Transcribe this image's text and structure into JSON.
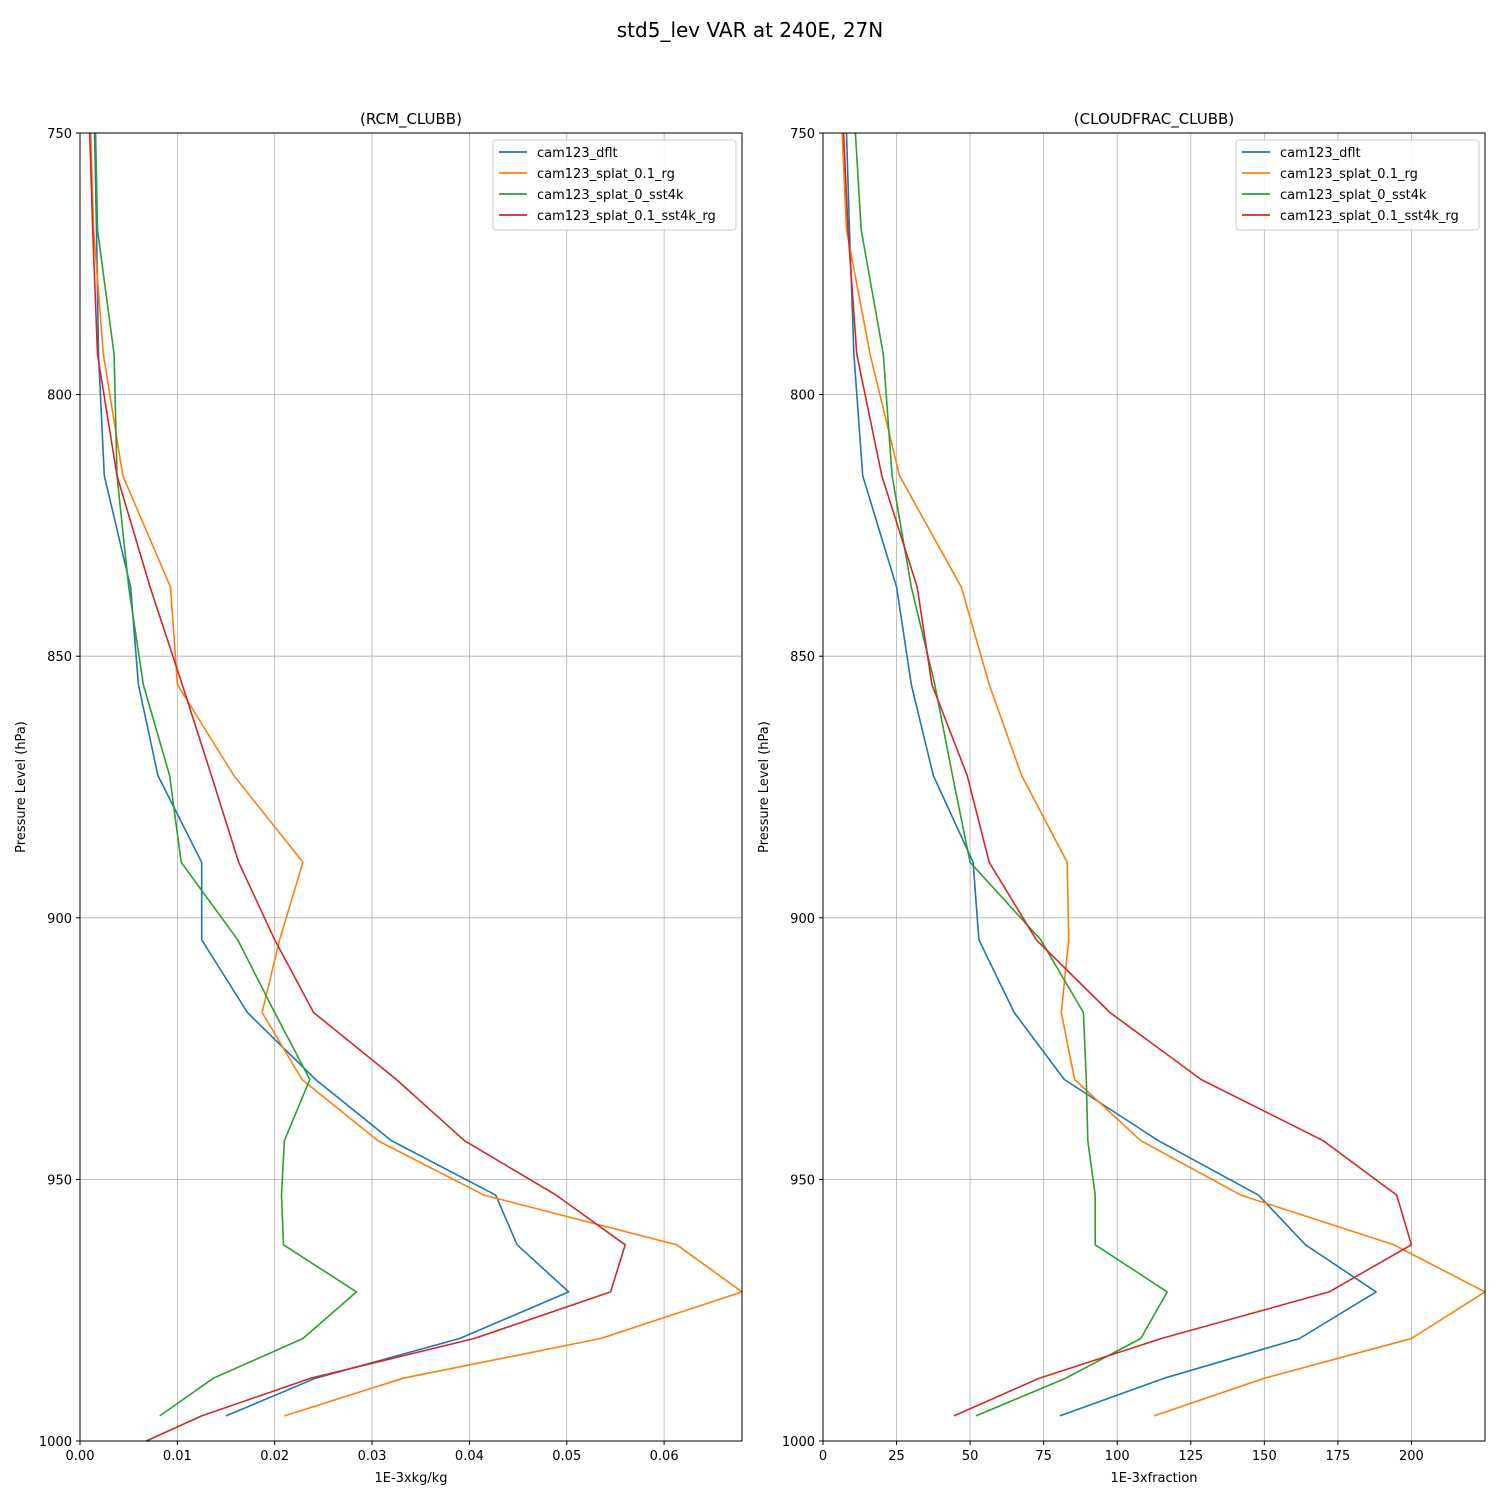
{
  "figure": {
    "suptitle": "std5_lev VAR at 240E, 27N"
  },
  "chart_data": [
    {
      "type": "line",
      "title": "(RCM_CLUBB)",
      "xlabel": "1E-3xkg/kg",
      "ylabel": "Pressure Level (hPa)",
      "xlim": [
        0.0,
        0.068
      ],
      "ylim": [
        1000,
        750
      ],
      "y_inverted": true,
      "xticks": [
        0.0,
        0.01,
        0.02,
        0.03,
        0.04,
        0.05,
        0.06
      ],
      "xtick_labels": [
        "0.00",
        "0.01",
        "0.02",
        "0.03",
        "0.04",
        "0.05",
        "0.06"
      ],
      "yticks": [
        750,
        800,
        850,
        900,
        950,
        1000
      ],
      "ytick_labels": [
        "750",
        "800",
        "850",
        "900",
        "950",
        "1000"
      ],
      "grid": true,
      "legend_position": "upper right",
      "series": [
        {
          "name": "cam123_dflt",
          "color": "#1f77b4",
          "x": [
            0.0015,
            0.0017,
            0.0019,
            0.0025,
            0.0052,
            0.006,
            0.008,
            0.0125,
            0.0125,
            0.0172,
            0.0242,
            0.032,
            0.0427,
            0.0449,
            0.0502,
            0.039,
            0.0242,
            0.015
          ],
          "y": [
            750,
            768.5,
            792.3,
            815.5,
            836.8,
            855.4,
            872.8,
            889.4,
            904.2,
            918.1,
            930.9,
            942.6,
            953.0,
            962.5,
            971.5,
            980.4,
            988.0,
            995.2
          ]
        },
        {
          "name": "cam123_splat_0.1_rg",
          "color": "#ff7f0e",
          "x": [
            0.0011,
            0.0014,
            0.0024,
            0.0044,
            0.0093,
            0.01,
            0.0158,
            0.0229,
            0.0205,
            0.0187,
            0.0228,
            0.0306,
            0.0415,
            0.0613,
            0.068,
            0.0535,
            0.0332,
            0.021
          ],
          "y": [
            750,
            768.5,
            792.3,
            815.5,
            836.8,
            855.4,
            872.8,
            889.4,
            904.2,
            918.1,
            930.9,
            942.6,
            953.0,
            962.5,
            971.5,
            980.4,
            988.0,
            995.2
          ]
        },
        {
          "name": "cam123_splat_0_sst4k",
          "color": "#2ca02c",
          "x": [
            0.0016,
            0.0018,
            0.0035,
            0.0038,
            0.005,
            0.0065,
            0.0092,
            0.0104,
            0.0162,
            0.02,
            0.0236,
            0.021,
            0.0207,
            0.0209,
            0.0284,
            0.0229,
            0.0137,
            0.0082
          ],
          "y": [
            750,
            768.5,
            792.3,
            815.5,
            836.8,
            855.4,
            872.8,
            889.4,
            904.2,
            918.1,
            930.9,
            942.6,
            953.0,
            962.5,
            971.5,
            980.4,
            988.0,
            995.2
          ]
        },
        {
          "name": "cam123_splat_0.1_sst4k_rg",
          "color": "#d62728",
          "x": [
            0.001,
            0.0013,
            0.0018,
            0.0038,
            0.0072,
            0.0105,
            0.0135,
            0.0163,
            0.02,
            0.024,
            0.0325,
            0.0395,
            0.0489,
            0.056,
            0.0545,
            0.0405,
            0.0237,
            0.0125,
            0.0068
          ],
          "y": [
            750,
            768.5,
            792.3,
            815.5,
            836.8,
            855.4,
            872.8,
            889.4,
            904.2,
            918.1,
            930.9,
            942.6,
            953.0,
            962.5,
            971.5,
            980.4,
            988.0,
            995.2,
            1000
          ]
        }
      ]
    },
    {
      "type": "line",
      "title": "(CLOUDFRAC_CLUBB)",
      "xlabel": "1E-3xfraction",
      "ylabel": "Pressure Level (hPa)",
      "xlim": [
        0,
        225
      ],
      "ylim": [
        1000,
        750
      ],
      "y_inverted": true,
      "xticks": [
        0,
        25,
        50,
        75,
        100,
        125,
        150,
        175,
        200
      ],
      "xtick_labels": [
        "0",
        "25",
        "50",
        "75",
        "100",
        "125",
        "150",
        "175",
        "200"
      ],
      "yticks": [
        750,
        800,
        850,
        900,
        950,
        1000
      ],
      "ytick_labels": [
        "750",
        "800",
        "850",
        "900",
        "950",
        "1000"
      ],
      "grid": true,
      "legend_position": "upper right",
      "series": [
        {
          "name": "cam123_dflt",
          "color": "#1f77b4",
          "x": [
            8,
            9,
            10.5,
            13.5,
            25,
            30,
            37.5,
            51,
            53,
            65,
            82,
            114,
            148,
            164,
            188,
            162,
            116,
            80.5
          ],
          "y": [
            750,
            768.5,
            792.3,
            815.5,
            836.8,
            855.4,
            872.8,
            889.4,
            904.2,
            918.1,
            930.9,
            942.6,
            953.0,
            962.5,
            971.5,
            980.4,
            988.0,
            995.2
          ]
        },
        {
          "name": "cam123_splat_0.1_rg",
          "color": "#ff7f0e",
          "x": [
            6.5,
            8,
            16,
            26,
            47,
            56.5,
            67.5,
            83,
            83.5,
            81,
            85.5,
            108,
            142,
            194,
            225,
            200,
            150,
            112.5
          ],
          "y": [
            750,
            768.5,
            792.3,
            815.5,
            836.8,
            855.4,
            872.8,
            889.4,
            904.2,
            918.1,
            930.9,
            942.6,
            953.0,
            962.5,
            971.5,
            980.4,
            988.0,
            995.2
          ]
        },
        {
          "name": "cam123_splat_0_sst4k",
          "color": "#2ca02c",
          "x": [
            11,
            13,
            20.5,
            23.5,
            30,
            38,
            44,
            50,
            74,
            88.5,
            89.5,
            90,
            92.5,
            92.5,
            117,
            108,
            82.5,
            52
          ],
          "y": [
            750,
            768.5,
            792.3,
            815.5,
            836.8,
            855.4,
            872.8,
            889.4,
            904.2,
            918.1,
            930.9,
            942.6,
            953.0,
            962.5,
            971.5,
            980.4,
            988.0,
            995.2
          ]
        },
        {
          "name": "cam123_splat_0.1_sst4k_rg",
          "color": "#d62728",
          "x": [
            7,
            8.5,
            11.5,
            20,
            32,
            37,
            49,
            56.5,
            72.5,
            97.5,
            128.5,
            170,
            195,
            200,
            172,
            115,
            73.5,
            44.5
          ],
          "y": [
            750,
            768.5,
            792.3,
            815.5,
            836.8,
            855.4,
            872.8,
            889.4,
            904.2,
            918.1,
            930.9,
            942.6,
            953.0,
            962.5,
            971.5,
            980.4,
            988.0,
            995.2
          ]
        }
      ]
    }
  ]
}
